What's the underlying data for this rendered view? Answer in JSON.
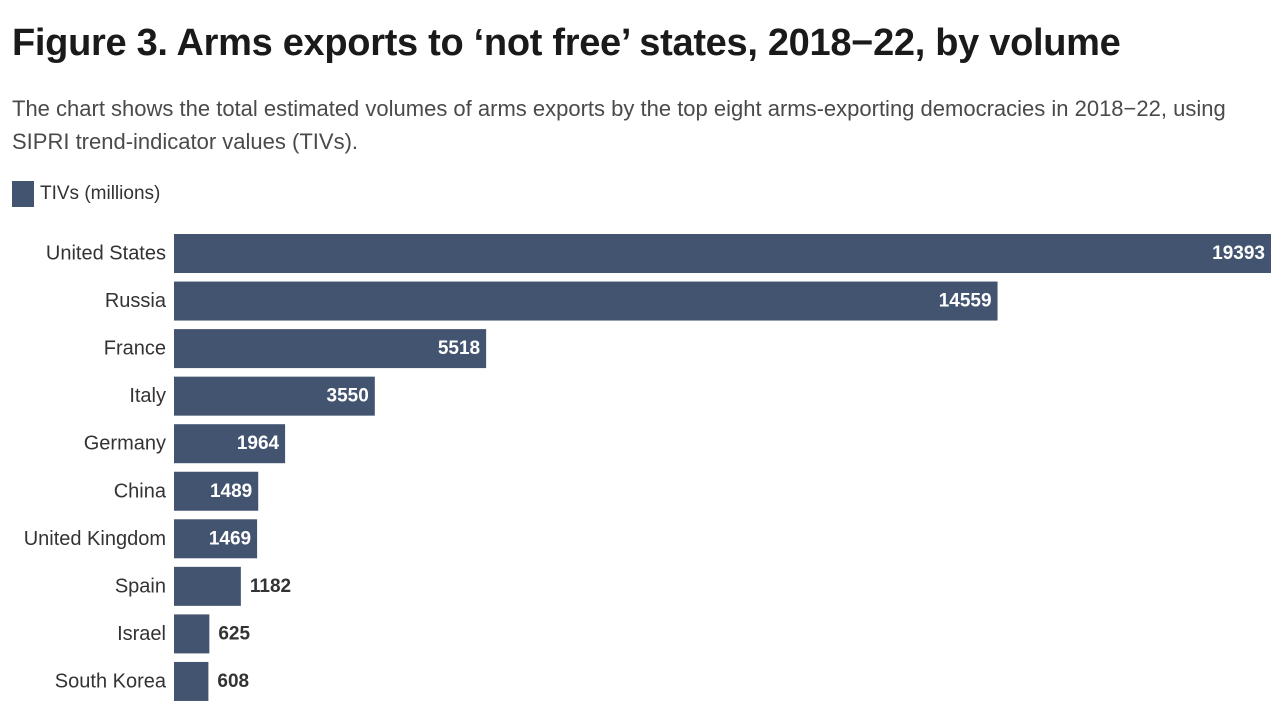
{
  "header": {
    "title": "Figure 3. Arms exports to ‘not free’ states, 2018−22, by volume",
    "subtitle": "The chart shows the total estimated volumes of arms exports by the top eight arms-exporting democracies in 2018−22, using SIPRI trend-indicator values (TIVs)."
  },
  "legend": {
    "label": "TIVs (millions)",
    "color": "#425470"
  },
  "chart_data": {
    "type": "bar",
    "orientation": "horizontal",
    "categories": [
      "United States",
      "Russia",
      "France",
      "Italy",
      "Germany",
      "China",
      "United Kingdom",
      "Spain",
      "Israel",
      "South Korea"
    ],
    "series": [
      {
        "name": "TIVs (millions)",
        "values": [
          19393,
          14559,
          5518,
          3550,
          1964,
          1489,
          1469,
          1182,
          625,
          608
        ],
        "color": "#425470"
      }
    ],
    "xlim": [
      0,
      19393
    ],
    "grid": false,
    "legend_position": "top-left"
  }
}
